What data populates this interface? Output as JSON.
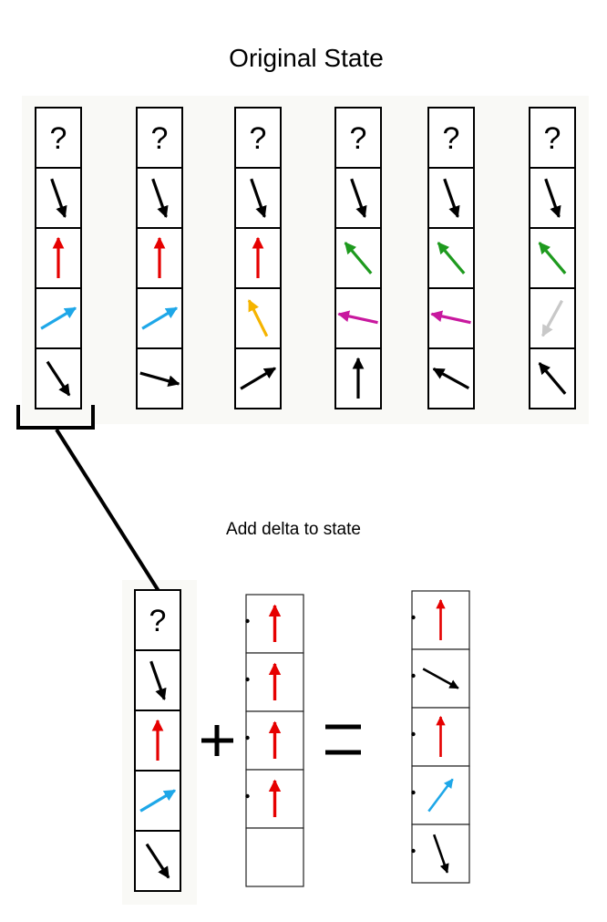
{
  "title": "Original State",
  "subtitle": "Add delta to state",
  "question_mark": "?",
  "plus_symbol": "+",
  "equals_symbol": "=",
  "colors": {
    "black": "#000000",
    "red": "#e60000",
    "blue": "#1ea7e8",
    "orange": "#f5b400",
    "green": "#1e9a1e",
    "magenta": "#c8189e",
    "gray": "#c8c8c8",
    "panel": "#f9f9f6"
  },
  "original_columns": [
    {
      "cells": [
        "question",
        {
          "color": "black",
          "dir": "down-right-steep"
        },
        {
          "color": "red",
          "dir": "up"
        },
        {
          "color": "blue",
          "dir": "up-right"
        },
        {
          "color": "black",
          "dir": "down-right"
        }
      ]
    },
    {
      "cells": [
        "question",
        {
          "color": "black",
          "dir": "down-right-steep"
        },
        {
          "color": "red",
          "dir": "up"
        },
        {
          "color": "blue",
          "dir": "up-right"
        },
        {
          "color": "black",
          "dir": "right-slight-down"
        }
      ]
    },
    {
      "cells": [
        "question",
        {
          "color": "black",
          "dir": "down-right-steep"
        },
        {
          "color": "red",
          "dir": "up"
        },
        {
          "color": "orange",
          "dir": "up-left-steep"
        },
        {
          "color": "black",
          "dir": "up-right"
        }
      ]
    },
    {
      "cells": [
        "question",
        {
          "color": "black",
          "dir": "down-right-steep"
        },
        {
          "color": "green",
          "dir": "up-left"
        },
        {
          "color": "magenta",
          "dir": "left-slight-up"
        },
        {
          "color": "black",
          "dir": "up"
        }
      ]
    },
    {
      "cells": [
        "question",
        {
          "color": "black",
          "dir": "down-right-steep"
        },
        {
          "color": "green",
          "dir": "up-left"
        },
        {
          "color": "magenta",
          "dir": "left-slight-up"
        },
        {
          "color": "black",
          "dir": "up-left-shallow"
        }
      ]
    },
    {
      "cells": [
        "question",
        {
          "color": "black",
          "dir": "down-right-steep"
        },
        {
          "color": "green",
          "dir": "up-left"
        },
        {
          "color": "gray",
          "dir": "down-left"
        },
        {
          "color": "black",
          "dir": "up-left"
        }
      ]
    }
  ],
  "selected_column": {
    "cells": [
      "question",
      {
        "color": "black",
        "dir": "down-right-steep"
      },
      {
        "color": "red",
        "dir": "up"
      },
      {
        "color": "blue",
        "dir": "up-right"
      },
      {
        "color": "black",
        "dir": "down-right"
      }
    ]
  },
  "delta_column": {
    "cells": [
      {
        "color": "red",
        "dir": "up"
      },
      {
        "color": "red",
        "dir": "up"
      },
      {
        "color": "red",
        "dir": "up"
      },
      {
        "color": "red",
        "dir": "up"
      },
      "empty"
    ]
  },
  "result_column": {
    "cells": [
      {
        "color": "red",
        "dir": "up"
      },
      {
        "color": "black",
        "dir": "down-right-shallow"
      },
      {
        "color": "red",
        "dir": "up"
      },
      {
        "color": "blue",
        "dir": "up-right-steep"
      },
      {
        "color": "black",
        "dir": "down-right-steep"
      }
    ]
  }
}
